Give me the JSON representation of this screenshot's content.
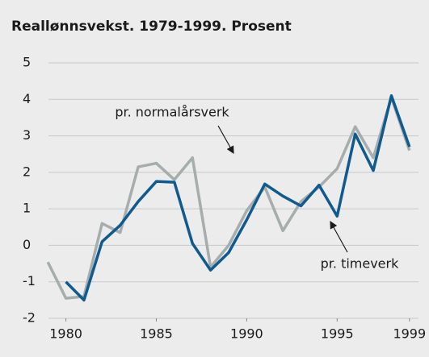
{
  "chart_data": {
    "type": "line",
    "title": "Reallønnsvekst. 1979-1999. Prosent",
    "x": [
      1979,
      1980,
      1981,
      1982,
      1983,
      1984,
      1985,
      1986,
      1987,
      1988,
      1989,
      1990,
      1991,
      1992,
      1993,
      1994,
      1995,
      1996,
      1997,
      1998,
      1999
    ],
    "series": [
      {
        "name": "pr. normalårsverk",
        "color": "#a6adad",
        "values": [
          -0.46,
          -1.45,
          -1.4,
          0.6,
          0.35,
          2.15,
          2.25,
          1.8,
          2.4,
          -0.6,
          0.0,
          0.95,
          1.6,
          0.4,
          1.2,
          1.6,
          2.1,
          3.25,
          2.4,
          4.05,
          2.6
        ]
      },
      {
        "name": "pr. timeverk",
        "color": "#0f5a8e",
        "values": [
          null,
          -1.0,
          -1.5,
          0.1,
          0.55,
          1.2,
          1.75,
          1.73,
          0.05,
          -0.68,
          -0.2,
          0.7,
          1.68,
          1.35,
          1.08,
          1.65,
          0.8,
          3.05,
          2.05,
          4.1,
          2.7
        ]
      }
    ],
    "xlim": [
      1978.5,
      1999.5
    ],
    "xticks": [
      1980,
      1985,
      1990,
      1995,
      1999
    ],
    "ylim": [
      -2,
      5
    ],
    "yticks": [
      -2,
      -1,
      0,
      1,
      2,
      3,
      4,
      5
    ],
    "grid": true
  }
}
